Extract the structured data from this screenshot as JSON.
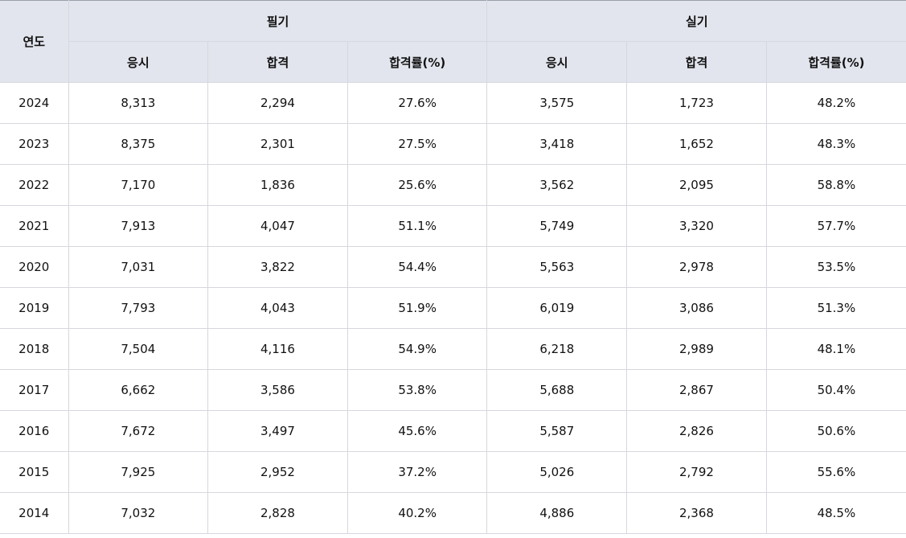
{
  "header": {
    "year": "연도",
    "written": "필기",
    "practical": "실기",
    "written_sub": [
      "응시",
      "합격",
      "합격률(%)"
    ],
    "practical_sub": [
      "응시",
      "합격",
      "합격률(%)"
    ]
  },
  "rows": [
    [
      "2024",
      "8,313",
      "2,294",
      "27.6%",
      "3,575",
      "1,723",
      "48.2%"
    ],
    [
      "2023",
      "8,375",
      "2,301",
      "27.5%",
      "3,418",
      "1,652",
      "48.3%"
    ],
    [
      "2022",
      "7,170",
      "1,836",
      "25.6%",
      "3,562",
      "2,095",
      "58.8%"
    ],
    [
      "2021",
      "7,913",
      "4,047",
      "51.1%",
      "5,749",
      "3,320",
      "57.7%"
    ],
    [
      "2020",
      "7,031",
      "3,822",
      "54.4%",
      "5,563",
      "2,978",
      "53.5%"
    ],
    [
      "2019",
      "7,793",
      "4,043",
      "51.9%",
      "6,019",
      "3,086",
      "51.3%"
    ],
    [
      "2018",
      "7,504",
      "4,116",
      "54.9%",
      "6,218",
      "2,989",
      "48.1%"
    ],
    [
      "2017",
      "6,662",
      "3,586",
      "53.8%",
      "5,688",
      "2,867",
      "50.4%"
    ],
    [
      "2016",
      "7,672",
      "3,497",
      "45.6%",
      "5,587",
      "2,826",
      "50.6%"
    ],
    [
      "2015",
      "7,925",
      "2,952",
      "37.2%",
      "5,026",
      "2,792",
      "55.6%"
    ],
    [
      "2014",
      "7,032",
      "2,828",
      "40.2%",
      "4,886",
      "2,368",
      "48.5%"
    ]
  ]
}
